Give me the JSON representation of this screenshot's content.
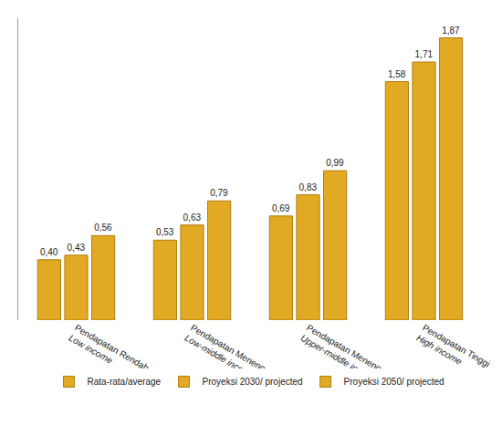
{
  "chart_data": {
    "type": "bar",
    "categories": [
      "Pendapatan Rendah\nLow income",
      "Pendapatan Menengah Bawah\nLow-middle income",
      "Pendapatan Menengah Atas\nUpper-middle income",
      "Pendapatan Tinggi\nHigh income"
    ],
    "series": [
      {
        "name": "Rata-rata/average",
        "color": "#e2a923",
        "values": [
          0.4,
          0.53,
          0.69,
          1.58
        ],
        "value_labels": [
          "0,40",
          "0,53",
          "0,69",
          "1,58"
        ]
      },
      {
        "name": "Proyeksi 2030/ projected",
        "color": "#e2a923",
        "values": [
          0.43,
          0.63,
          0.83,
          1.71
        ],
        "value_labels": [
          "0,43",
          "0,63",
          "0,83",
          "1,71"
        ]
      },
      {
        "name": "Proyeksi 2050/ projected",
        "color": "#e2a923",
        "values": [
          0.56,
          0.79,
          0.99,
          1.87
        ],
        "value_labels": [
          "0,56",
          "0,79",
          "0,99",
          "1,87"
        ]
      }
    ],
    "ylim": [
      0,
      2
    ],
    "data_labels": true,
    "tick_labels": "x",
    "grid": false,
    "legend": "bottom"
  }
}
